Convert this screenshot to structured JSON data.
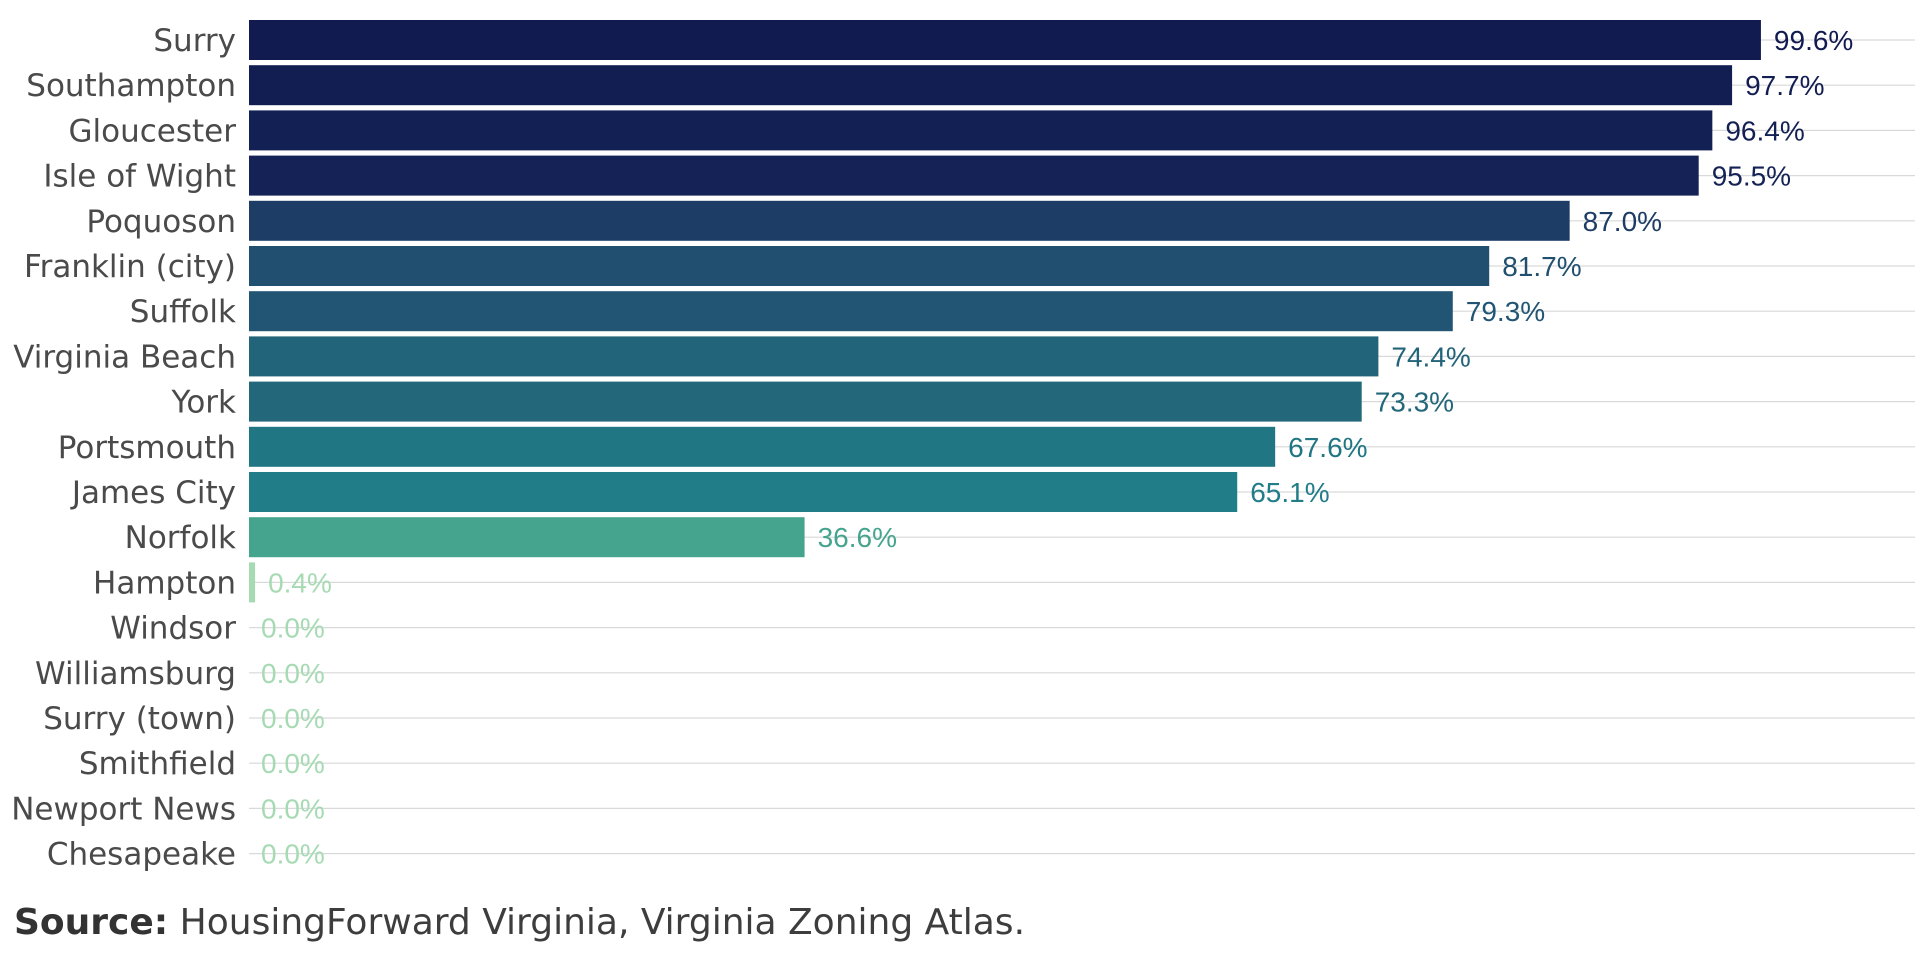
{
  "chart_data": {
    "type": "bar",
    "orientation": "horizontal",
    "categories": [
      "Surry",
      "Southampton",
      "Gloucester",
      "Isle of Wight",
      "Poquoson",
      "Franklin (city)",
      "Suffolk",
      "Virginia Beach",
      "York",
      "Portsmouth",
      "James City",
      "Norfolk",
      "Hampton",
      "Windsor",
      "Williamsburg",
      "Surry (town)",
      "Smithfield",
      "Newport News",
      "Chesapeake"
    ],
    "values": [
      99.6,
      97.7,
      96.4,
      95.5,
      87.0,
      81.7,
      79.3,
      74.4,
      73.3,
      67.6,
      65.1,
      36.6,
      0.4,
      0.0,
      0.0,
      0.0,
      0.0,
      0.0,
      0.0
    ],
    "value_labels": [
      "99.6%",
      "97.7%",
      "96.4%",
      "95.5%",
      "87.0%",
      "81.7%",
      "79.3%",
      "74.4%",
      "73.3%",
      "67.6%",
      "65.1%",
      "36.6%",
      "0.4%",
      "0.0%",
      "0.0%",
      "0.0%",
      "0.0%",
      "0.0%",
      "0.0%"
    ],
    "colors": [
      "#111b4f",
      "#121d52",
      "#132054",
      "#142256",
      "#1d3c66",
      "#204f70",
      "#215573",
      "#226479",
      "#22677a",
      "#207683",
      "#217d88",
      "#45a48e",
      "#a6dab3",
      "#a6dab3",
      "#a6dab3",
      "#a6dab3",
      "#a6dab3",
      "#a6dab3",
      "#a6dab3"
    ],
    "xlim": [
      0,
      100
    ],
    "grid": "horizontal lines",
    "title": "",
    "xlabel": "",
    "ylabel": ""
  },
  "source": {
    "label": "Source:",
    "text": "HousingForward Virginia, Virginia Zoning Atlas."
  }
}
